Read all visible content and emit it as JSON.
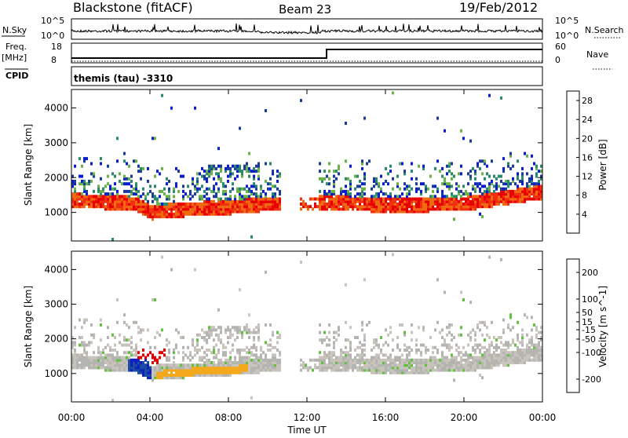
{
  "header": {
    "station": "Blackstone (fitACF)",
    "beam": "Beam 23",
    "date": "19/Feb/2012"
  },
  "left_labels": {
    "nsky": "N.Sky",
    "freq": "Freq.",
    "freq_unit": "[MHz]",
    "cpid": "CPID",
    "nsky_hi": "10^5",
    "nsky_lo": "10^0",
    "freq_hi": "18",
    "freq_lo": "8"
  },
  "right_labels": {
    "nsearch": "N.Search",
    "nave": "Nave",
    "nsearch_hi": "10^5",
    "nsearch_lo": "10^0",
    "nave_hi": "60",
    "nave_lo": "0"
  },
  "cpid_text": "themis (tau) -3310",
  "colors": {
    "power": [
      "#0a1ed0",
      "#1c3c9c",
      "#2a8a6a",
      "#6ab24a",
      "#e8d020",
      "#f0a018",
      "#ef6a10",
      "#f03010",
      "#e80000"
    ],
    "velocity": [
      "#e00000",
      "#ee3c10",
      "#f07818",
      "#f4a81c",
      "#c8c4bc",
      "#b4b4b0",
      "#64c040",
      "#2a8a4a",
      "#1c4ca0",
      "#1020c0"
    ]
  },
  "chart_data": [
    {
      "type": "heatmap",
      "title": "",
      "xlabel": "Time UT",
      "ylabel": "Slant Range [km]",
      "x_ticks": [
        "00:00",
        "04:00",
        "08:00",
        "12:00",
        "16:00",
        "20:00",
        "00:00"
      ],
      "y_ticks": [
        1000,
        2000,
        3000,
        4000
      ],
      "xlim_hours": [
        0,
        24
      ],
      "ylim_km": [
        180,
        4530
      ],
      "colorbar": {
        "label": "Power [dB]",
        "ticks": [
          4,
          8,
          12,
          16,
          20,
          24,
          28
        ],
        "range": [
          0,
          30
        ]
      },
      "main_echo_band_km": [
        [
          0,
          1250
        ],
        [
          3.2,
          1150
        ],
        [
          4,
          900
        ],
        [
          6,
          1000
        ],
        [
          8,
          1050
        ],
        [
          10,
          1150
        ],
        [
          11.5,
          1150
        ],
        [
          13,
          1200
        ],
        [
          16,
          1100
        ],
        [
          20,
          1150
        ],
        [
          24,
          1500
        ]
      ]
    },
    {
      "type": "heatmap",
      "title": "",
      "xlabel": "Time UT",
      "ylabel": "Slant Range [km]",
      "x_ticks": [
        "00:00",
        "04:00",
        "08:00",
        "12:00",
        "16:00",
        "20:00",
        "00:00"
      ],
      "y_ticks": [
        1000,
        2000,
        3000,
        4000
      ],
      "xlim_hours": [
        0,
        24
      ],
      "ylim_km": [
        180,
        4530
      ],
      "colorbar": {
        "label": "Velocity [m s^-1]",
        "ticks": [
          200,
          100,
          50,
          15,
          -15,
          -50,
          -100,
          -200
        ],
        "range": [
          -250,
          250
        ]
      }
    }
  ]
}
